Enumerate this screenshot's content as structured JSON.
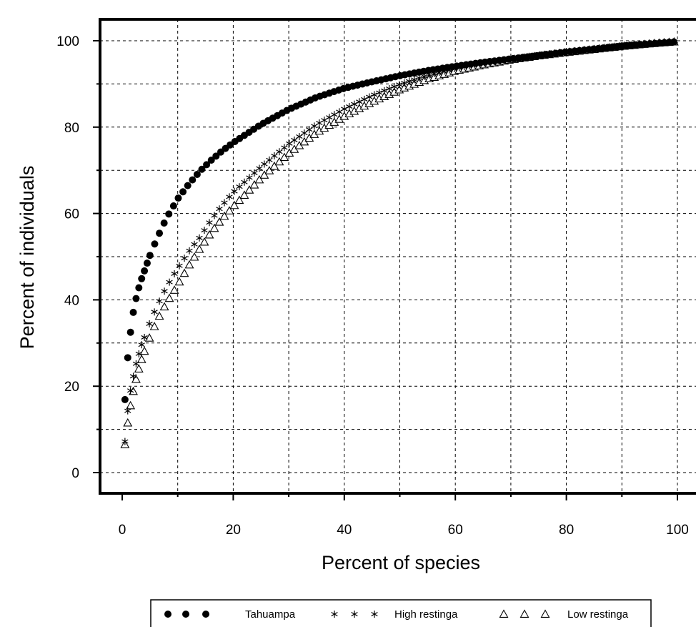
{
  "chart_data": {
    "type": "scatter",
    "xlabel": "Percent of species",
    "ylabel": "Percent of individuals",
    "xlim": [
      -3.6,
      100
    ],
    "ylim": [
      -5,
      105
    ],
    "xticks": [
      0,
      20,
      40,
      60,
      80,
      100
    ],
    "yticks": [
      0,
      20,
      40,
      60,
      80,
      100
    ],
    "grid": true,
    "legend_position": "bottom",
    "series": [
      {
        "name": "Tahuampa",
        "marker": "filled-circle",
        "curve": {
          "k": 9.0,
          "p": 0.6
        },
        "x": [
          0.5,
          1.0,
          1.5,
          2.0,
          2.5,
          3.0,
          3.5,
          4.0,
          4.5,
          5.0,
          6.0,
          7.0,
          8.0,
          9.0,
          10.0,
          12.0,
          14.0,
          16.0,
          18.0,
          20.0,
          25.0,
          30.0,
          35.0,
          40.0,
          45.0,
          50.0,
          55.0,
          60.0,
          65.0,
          70.0,
          75.0,
          80.0,
          85.0,
          90.0,
          95.0,
          100.0
        ],
        "y": [
          16.9,
          26.6,
          32.5,
          37.1,
          40.3,
          42.8,
          44.9,
          46.7,
          48.5,
          50.3,
          53.4,
          56.3,
          59.0,
          61.2,
          63.4,
          66.8,
          69.8,
          72.3,
          74.5,
          76.4,
          80.6,
          84.1,
          86.9,
          89.0,
          90.5,
          91.9,
          93.1,
          94.1,
          95.0,
          95.8,
          96.6,
          97.4,
          98.1,
          98.8,
          99.3,
          99.8
        ]
      },
      {
        "name": "High restinga",
        "marker": "asterisk",
        "curve": {
          "k": 6.0,
          "p": 0.7
        },
        "x": [
          0.5,
          1.0,
          1.5,
          2.0,
          2.5,
          3.0,
          3.5,
          4.0,
          5.0,
          6.0,
          7.0,
          8.0,
          9.0,
          10.0,
          12.0,
          14.0,
          16.0,
          18.0,
          20.0,
          25.0,
          30.0,
          35.0,
          40.0,
          45.0,
          50.0,
          55.0,
          60.0,
          65.0,
          70.0,
          75.0,
          80.0,
          85.0,
          90.0,
          95.0,
          100.0
        ],
        "y": [
          7.2,
          14.3,
          19.0,
          22.3,
          25.2,
          27.5,
          29.6,
          31.3,
          34.8,
          37.8,
          40.5,
          43.0,
          45.2,
          47.3,
          51.2,
          54.5,
          58.5,
          61.9,
          64.9,
          70.8,
          76.1,
          80.6,
          84.2,
          87.3,
          89.9,
          92.0,
          93.6,
          94.8,
          95.8,
          96.6,
          97.4,
          98.1,
          98.7,
          99.3,
          99.8
        ]
      },
      {
        "name": "Low restinga",
        "marker": "open-triangle",
        "curve": {
          "k": 5.0,
          "p": 0.75
        },
        "x": [
          0.5,
          1.0,
          1.5,
          2.0,
          2.5,
          3.0,
          3.5,
          4.0,
          5.0,
          6.0,
          7.0,
          8.0,
          9.0,
          10.0,
          12.0,
          14.0,
          16.0,
          18.0,
          20.0,
          25.0,
          30.0,
          35.0,
          40.0,
          45.0,
          50.0,
          55.0,
          60.0,
          65.0,
          70.0,
          75.0,
          80.0,
          85.0,
          90.0,
          95.0,
          100.0
        ],
        "y": [
          6.5,
          11.5,
          15.5,
          18.8,
          21.6,
          24.0,
          26.2,
          28.1,
          31.5,
          34.4,
          37.0,
          39.3,
          41.4,
          43.5,
          47.9,
          51.9,
          55.6,
          58.8,
          61.6,
          68.2,
          73.9,
          78.7,
          82.5,
          85.8,
          88.7,
          91.1,
          93.0,
          94.4,
          95.6,
          96.5,
          97.3,
          98.0,
          98.7,
          99.3,
          99.8
        ]
      }
    ]
  }
}
